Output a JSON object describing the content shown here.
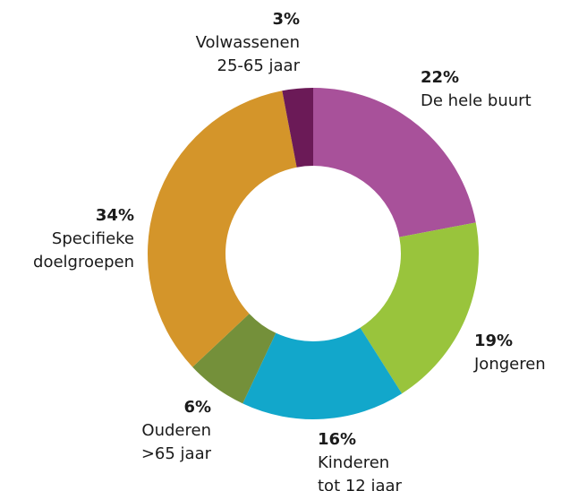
{
  "chart_data": {
    "type": "donut",
    "categories": [
      [
        "De hele buurt"
      ],
      [
        "Jongeren"
      ],
      [
        "Kinderen",
        "tot 12 jaar"
      ],
      [
        "Ouderen",
        ">65 jaar"
      ],
      [
        "Specifieke",
        "doelgroepen"
      ],
      [
        "Volwassenen",
        "25-65 jaar"
      ]
    ],
    "values": [
      22,
      19,
      16,
      6,
      34,
      3
    ],
    "value_labels": [
      "22%",
      "19%",
      "16%",
      "6%",
      "34%",
      "3%"
    ],
    "colors": [
      "#a8519a",
      "#99c43c",
      "#12a7cb",
      "#74903a",
      "#d4952a",
      "#6b1a57"
    ]
  }
}
